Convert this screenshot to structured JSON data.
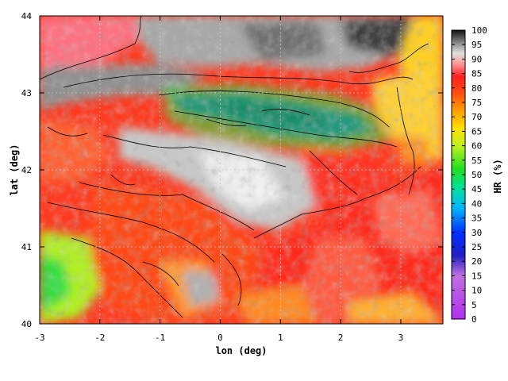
{
  "chart_data": {
    "type": "heatmap",
    "title": "",
    "xlabel": "lon (deg)",
    "ylabel": "lat (deg)",
    "xlim": [
      -3,
      3.7
    ],
    "ylim": [
      40,
      44
    ],
    "x_ticks": [
      -3,
      -2,
      -1,
      0,
      1,
      2,
      3
    ],
    "y_ticks": [
      40,
      41,
      42,
      43,
      44
    ],
    "grid": true,
    "colorbar": {
      "label": "HR (%)",
      "min": 0,
      "max": 100,
      "ticks": [
        0,
        5,
        10,
        15,
        20,
        25,
        30,
        35,
        40,
        45,
        50,
        55,
        60,
        65,
        70,
        75,
        80,
        85,
        90,
        95,
        100
      ],
      "stops": [
        {
          "v": 0,
          "color": "#b030f0"
        },
        {
          "v": 15,
          "color": "#c070e0"
        },
        {
          "v": 22,
          "color": "#2020c0"
        },
        {
          "v": 30,
          "color": "#0030ff"
        },
        {
          "v": 38,
          "color": "#00b0ff"
        },
        {
          "v": 45,
          "color": "#00e0a0"
        },
        {
          "v": 52,
          "color": "#20e020"
        },
        {
          "v": 60,
          "color": "#c0f020"
        },
        {
          "v": 66,
          "color": "#ffe000"
        },
        {
          "v": 72,
          "color": "#ffa000"
        },
        {
          "v": 78,
          "color": "#ff5010"
        },
        {
          "v": 84,
          "color": "#ff2020"
        },
        {
          "v": 88,
          "color": "#ff9090"
        },
        {
          "v": 92,
          "color": "#e0e0e0"
        },
        {
          "v": 96,
          "color": "#808080"
        },
        {
          "v": 100,
          "color": "#101010"
        }
      ]
    }
  }
}
